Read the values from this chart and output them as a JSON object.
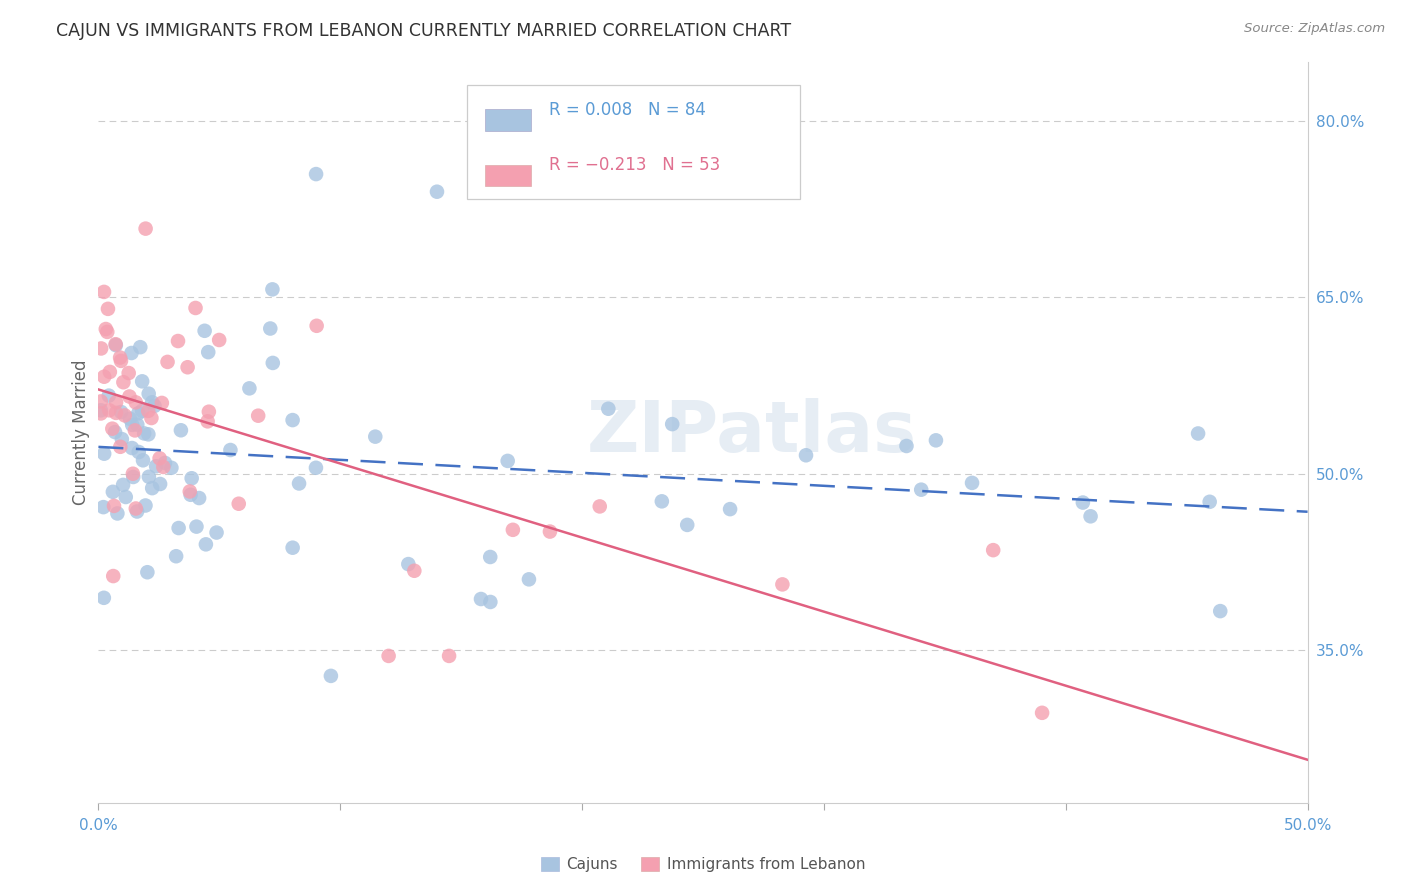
{
  "title": "CAJUN VS IMMIGRANTS FROM LEBANON CURRENTLY MARRIED CORRELATION CHART",
  "source": "Source: ZipAtlas.com",
  "ylabel": "Currently Married",
  "xlim": [
    0.0,
    0.5
  ],
  "ylim": [
    0.22,
    0.85
  ],
  "xticks": [
    0.0,
    0.1,
    0.2,
    0.3,
    0.4,
    0.5
  ],
  "xticklabels": [
    "0.0%",
    "",
    "",
    "",
    "",
    "50.0%"
  ],
  "yticks_right": [
    0.35,
    0.5,
    0.65,
    0.8
  ],
  "ytick_labels_right": [
    "35.0%",
    "50.0%",
    "65.0%",
    "80.0%"
  ],
  "grid_color": "#cccccc",
  "background_color": "#ffffff",
  "cajuns_color": "#a8c4e0",
  "lebanon_color": "#f4a0b0",
  "cajuns_line_color": "#4472c4",
  "lebanon_line_color": "#e06080",
  "watermark": "ZIPatlas",
  "tick_color": "#5b9bd5",
  "title_color": "#333333",
  "source_color": "#888888",
  "ylabel_color": "#666666",
  "legend_label_color": "#333333"
}
